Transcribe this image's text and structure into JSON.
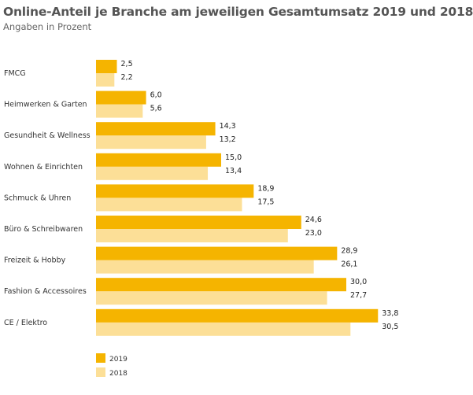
{
  "colors": {
    "y2019": "#F5B400",
    "y2018": "#FCDF97"
  },
  "chart_data": {
    "type": "bar",
    "orientation": "horizontal",
    "title": "Online-Anteil je Branche am jeweiligen Gesamtumsatz 2019 und 2018",
    "subtitle": "Angaben in Prozent",
    "categories": [
      "FMCG",
      "Heimwerken & Garten",
      "Gesundheit & Wellness",
      "Wohnen & Einrichten",
      "Schmuck & Uhren",
      "Büro & Schreibwaren",
      "Freizeit & Hobby",
      "Fashion & Accessoires",
      "CE / Elektro"
    ],
    "series": [
      {
        "name": "2019",
        "values": [
          2.5,
          6.0,
          14.3,
          15.0,
          18.9,
          24.6,
          28.9,
          30.0,
          33.8
        ],
        "labels": [
          "2,5",
          "6,0",
          "14,3",
          "15,0",
          "18,9",
          "24,6",
          "28,9",
          "30,0",
          "33,8"
        ]
      },
      {
        "name": "2018",
        "values": [
          2.2,
          5.6,
          13.2,
          13.4,
          17.5,
          23.0,
          26.1,
          27.7,
          30.5
        ],
        "labels": [
          "2,2",
          "5,6",
          "13,2",
          "13,4",
          "17,5",
          "23,0",
          "26,1",
          "27,7",
          "30,5"
        ]
      }
    ],
    "xlim": [
      0,
      35
    ],
    "grid": false,
    "legend": "bottom-left"
  }
}
